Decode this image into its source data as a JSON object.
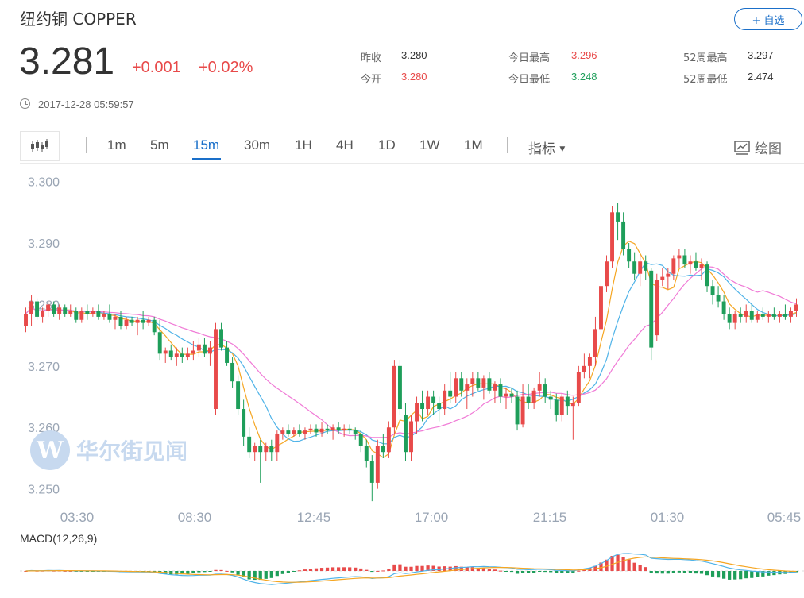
{
  "header": {
    "title": "纽约铜  COPPER",
    "follow_label": "+ 自选",
    "price": "3.281",
    "change": "+0.001",
    "change_pct": "+0.02%",
    "timestamp": "2017-12-28 05:59:57"
  },
  "stats": [
    {
      "label": "昨收",
      "value": "3.280",
      "color": "#333333"
    },
    {
      "label": "今开",
      "value": "3.280",
      "color": "#e84a4a"
    },
    {
      "label": "今日最高",
      "value": "3.296",
      "color": "#e84a4a"
    },
    {
      "label": "今日最低",
      "value": "3.248",
      "color": "#1e9e5a"
    },
    {
      "label": "52周最高",
      "value": "3.297",
      "color": "#333333"
    },
    {
      "label": "52周最低",
      "value": "2.474",
      "color": "#333333"
    }
  ],
  "toolbar": {
    "tabs": [
      "1m",
      "5m",
      "15m",
      "30m",
      "1H",
      "4H",
      "1D",
      "1W",
      "1M"
    ],
    "active_tab": "15m",
    "indicator_label": "指标",
    "draw_label": "绘图"
  },
  "watermark": {
    "logo": "W",
    "text": "华尔街见闻"
  },
  "colors": {
    "up": "#e84a4a",
    "down": "#1e9e5a",
    "ma1": "#f5a623",
    "ma2": "#4fb3e8",
    "ma3": "#f07ad6",
    "accent": "#1a6fc9"
  },
  "chart_data": {
    "type": "candlestick",
    "y_ticks": [
      "3.300",
      "3.290",
      "3.280",
      "3.270",
      "3.260",
      "3.250"
    ],
    "ylim": [
      3.2475,
      3.3015
    ],
    "x_ticks": [
      "03:30",
      "08:30",
      "12:45",
      "17:00",
      "21:15",
      "01:30",
      "05:45"
    ],
    "macd_label": "MACD(12,26,9)",
    "candles": [
      [
        3.2765,
        3.2795,
        3.2755,
        3.2785
      ],
      [
        3.2785,
        3.2815,
        3.2765,
        3.2805
      ],
      [
        3.2805,
        3.281,
        3.2775,
        3.278
      ],
      [
        3.278,
        3.2795,
        3.277,
        3.279
      ],
      [
        3.279,
        3.2805,
        3.278,
        3.28
      ],
      [
        3.28,
        3.2805,
        3.278,
        3.2785
      ],
      [
        3.2785,
        3.28,
        3.2775,
        3.2795
      ],
      [
        3.2795,
        3.28,
        3.278,
        3.2785
      ],
      [
        3.2785,
        3.28,
        3.278,
        3.279
      ],
      [
        3.279,
        3.2795,
        3.277,
        3.2775
      ],
      [
        3.2775,
        3.2795,
        3.277,
        3.279
      ],
      [
        3.279,
        3.28,
        3.2775,
        3.2785
      ],
      [
        3.2785,
        3.2795,
        3.278,
        3.279
      ],
      [
        3.279,
        3.28,
        3.2775,
        3.278
      ],
      [
        3.278,
        3.279,
        3.2775,
        3.2785
      ],
      [
        3.2785,
        3.28,
        3.277,
        3.2775
      ],
      [
        3.2775,
        3.2785,
        3.276,
        3.278
      ],
      [
        3.278,
        3.279,
        3.276,
        3.2765
      ],
      [
        3.2765,
        3.278,
        3.276,
        3.2775
      ],
      [
        3.2775,
        3.278,
        3.2765,
        3.277
      ],
      [
        3.277,
        3.278,
        3.275,
        3.2775
      ],
      [
        3.2775,
        3.279,
        3.276,
        3.277
      ],
      [
        3.277,
        3.278,
        3.2765,
        3.2775
      ],
      [
        3.2775,
        3.278,
        3.275,
        3.2755
      ],
      [
        3.2755,
        3.2775,
        3.271,
        3.272
      ],
      [
        3.272,
        3.273,
        3.2705,
        3.2725
      ],
      [
        3.2725,
        3.2735,
        3.271,
        3.2715
      ],
      [
        3.2715,
        3.273,
        3.27,
        3.272
      ],
      [
        3.272,
        3.273,
        3.2705,
        3.2715
      ],
      [
        3.2715,
        3.273,
        3.271,
        3.272
      ],
      [
        3.272,
        3.274,
        3.271,
        3.2725
      ],
      [
        3.2725,
        3.2745,
        3.2715,
        3.2735
      ],
      [
        3.2735,
        3.2745,
        3.2715,
        3.272
      ],
      [
        3.272,
        3.274,
        3.27,
        3.273
      ],
      [
        3.263,
        3.277,
        3.262,
        3.276
      ],
      [
        3.276,
        3.277,
        3.2725,
        3.273
      ],
      [
        3.273,
        3.274,
        3.27,
        3.2705
      ],
      [
        3.2705,
        3.2715,
        3.2665,
        3.2675
      ],
      [
        3.2675,
        3.2685,
        3.262,
        3.263
      ],
      [
        3.263,
        3.2645,
        3.257,
        3.2585
      ],
      [
        3.2585,
        3.26,
        3.255,
        3.256
      ],
      [
        3.256,
        3.2575,
        3.2545,
        3.257
      ],
      [
        3.257,
        3.258,
        3.251,
        3.256
      ],
      [
        3.256,
        3.2575,
        3.2545,
        3.257
      ],
      [
        3.257,
        3.258,
        3.2545,
        3.256
      ],
      [
        3.256,
        3.2595,
        3.2545,
        3.259
      ],
      [
        3.259,
        3.26,
        3.258,
        3.2595
      ],
      [
        3.2595,
        3.2605,
        3.2585,
        3.259
      ],
      [
        3.259,
        3.26,
        3.2585,
        3.2595
      ],
      [
        3.2595,
        3.2605,
        3.2585,
        3.259
      ],
      [
        3.259,
        3.26,
        3.258,
        3.2595
      ],
      [
        3.2595,
        3.2605,
        3.259,
        3.2598
      ],
      [
        3.2598,
        3.2605,
        3.2585,
        3.2592
      ],
      [
        3.2592,
        3.2608,
        3.2585,
        3.2598
      ],
      [
        3.2598,
        3.2605,
        3.259,
        3.2595
      ],
      [
        3.2595,
        3.2605,
        3.258,
        3.26
      ],
      [
        3.26,
        3.2608,
        3.259,
        3.2595
      ],
      [
        3.2595,
        3.2605,
        3.2585,
        3.2598
      ],
      [
        3.2598,
        3.2605,
        3.259,
        3.2596
      ],
      [
        3.2596,
        3.26,
        3.258,
        3.259
      ],
      [
        3.259,
        3.2595,
        3.256,
        3.257
      ],
      [
        3.257,
        3.258,
        3.2535,
        3.2545
      ],
      [
        3.2545,
        3.2555,
        3.248,
        3.251
      ],
      [
        3.251,
        3.258,
        3.25,
        3.257
      ],
      [
        3.257,
        3.259,
        3.255,
        3.256
      ],
      [
        3.256,
        3.261,
        3.255,
        3.26
      ],
      [
        3.26,
        3.271,
        3.259,
        3.27
      ],
      [
        3.27,
        3.271,
        3.262,
        3.263
      ],
      [
        3.262,
        3.264,
        3.2545,
        3.256
      ],
      [
        3.256,
        3.262,
        3.2545,
        3.261
      ],
      [
        3.261,
        3.265,
        3.259,
        3.264
      ],
      [
        3.264,
        3.266,
        3.261,
        3.263
      ],
      [
        3.263,
        3.266,
        3.262,
        3.265
      ],
      [
        3.265,
        3.266,
        3.262,
        3.264
      ],
      [
        3.264,
        3.265,
        3.261,
        3.263
      ],
      [
        3.263,
        3.267,
        3.262,
        3.266
      ],
      [
        3.266,
        3.269,
        3.264,
        3.265
      ],
      [
        3.265,
        3.269,
        3.264,
        3.268
      ],
      [
        3.268,
        3.269,
        3.265,
        3.266
      ],
      [
        3.266,
        3.268,
        3.263,
        3.267
      ],
      [
        3.267,
        3.269,
        3.265,
        3.268
      ],
      [
        3.268,
        3.269,
        3.266,
        3.2665
      ],
      [
        3.2665,
        3.2685,
        3.2645,
        3.268
      ],
      [
        3.268,
        3.269,
        3.2655,
        3.266
      ],
      [
        3.266,
        3.2675,
        3.264,
        3.267
      ],
      [
        3.267,
        3.268,
        3.264,
        3.265
      ],
      [
        3.265,
        3.2665,
        3.263,
        3.2655
      ],
      [
        3.2655,
        3.2665,
        3.264,
        3.265
      ],
      [
        3.265,
        3.266,
        3.2595,
        3.2605
      ],
      [
        3.2605,
        3.267,
        3.26,
        3.265
      ],
      [
        3.265,
        3.267,
        3.263,
        3.264
      ],
      [
        3.264,
        3.2665,
        3.263,
        3.266
      ],
      [
        3.266,
        3.269,
        3.265,
        3.267
      ],
      [
        3.267,
        3.268,
        3.264,
        3.265
      ],
      [
        3.265,
        3.266,
        3.263,
        3.2645
      ],
      [
        3.2645,
        3.2655,
        3.261,
        3.262
      ],
      [
        3.262,
        3.2655,
        3.261,
        3.265
      ],
      [
        3.265,
        3.266,
        3.262,
        3.2635
      ],
      [
        3.2635,
        3.265,
        3.258,
        3.264
      ],
      [
        3.264,
        3.27,
        3.2635,
        3.269
      ],
      [
        3.269,
        3.272,
        3.268,
        3.27
      ],
      [
        3.27,
        3.272,
        3.268,
        3.2715
      ],
      [
        3.2715,
        3.278,
        3.27,
        3.276
      ],
      [
        3.276,
        3.284,
        3.275,
        3.283
      ],
      [
        3.283,
        3.288,
        3.282,
        3.287
      ],
      [
        3.287,
        3.296,
        3.286,
        3.295
      ],
      [
        3.295,
        3.2965,
        3.2905,
        3.2935
      ],
      [
        3.2935,
        3.295,
        3.288,
        3.289
      ],
      [
        3.289,
        3.29,
        3.286,
        3.287
      ],
      [
        3.287,
        3.2885,
        3.284,
        3.285
      ],
      [
        3.285,
        3.288,
        3.283,
        3.287
      ],
      [
        3.287,
        3.288,
        3.284,
        3.2855
      ],
      [
        3.2855,
        3.286,
        3.271,
        3.273
      ],
      [
        3.275,
        3.285,
        3.274,
        3.284
      ],
      [
        3.284,
        3.286,
        3.283,
        3.2845
      ],
      [
        3.2845,
        3.286,
        3.2825,
        3.285
      ],
      [
        3.285,
        3.288,
        3.284,
        3.2875
      ],
      [
        3.2875,
        3.289,
        3.286,
        3.288
      ],
      [
        3.288,
        3.289,
        3.286,
        3.2865
      ],
      [
        3.2865,
        3.288,
        3.285,
        3.287
      ],
      [
        3.287,
        3.2885,
        3.2855,
        3.286
      ],
      [
        3.286,
        3.2875,
        3.284,
        3.2865
      ],
      [
        3.2865,
        3.287,
        3.282,
        3.283
      ],
      [
        3.283,
        3.284,
        3.28,
        3.2815
      ],
      [
        3.2815,
        3.283,
        3.2795,
        3.2805
      ],
      [
        3.2805,
        3.2815,
        3.2775,
        3.2785
      ],
      [
        3.2785,
        3.2795,
        3.276,
        3.277
      ],
      [
        3.277,
        3.279,
        3.276,
        3.2785
      ],
      [
        3.2785,
        3.2795,
        3.277,
        3.278
      ],
      [
        3.278,
        3.28,
        3.277,
        3.279
      ],
      [
        3.279,
        3.28,
        3.277,
        3.2775
      ],
      [
        3.2775,
        3.279,
        3.277,
        3.2785
      ],
      [
        3.2785,
        3.2795,
        3.2775,
        3.278
      ],
      [
        3.278,
        3.279,
        3.277,
        3.2785
      ],
      [
        3.2785,
        3.2795,
        3.2775,
        3.278
      ],
      [
        3.278,
        3.279,
        3.277,
        3.2785
      ],
      [
        3.2785,
        3.28,
        3.2775,
        3.278
      ],
      [
        3.278,
        3.2795,
        3.277,
        3.279
      ],
      [
        3.279,
        3.281,
        3.278,
        3.28
      ]
    ]
  }
}
